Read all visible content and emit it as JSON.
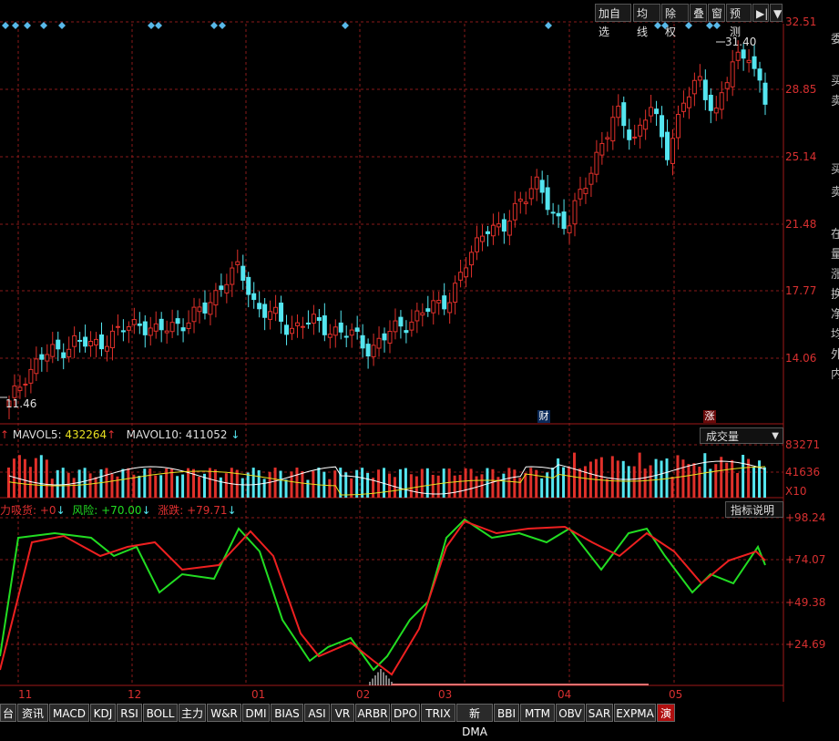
{
  "toolbar": {
    "buttons": [
      "加自选",
      "均线",
      "除权",
      "叠",
      "窗",
      "预测",
      "▶|",
      "▼"
    ]
  },
  "price_axis": [
    "32.51",
    "28.85",
    "25.14",
    "21.48",
    "17.77",
    "14.06"
  ],
  "price_markers": {
    "high": "31.40",
    "low": "11.46",
    "event_cai": "财",
    "event_zhang": "涨"
  },
  "right_edge_text": [
    "委",
    "买",
    "卖",
    "买",
    "卖",
    "在",
    "量",
    "涨",
    "换",
    "净",
    "均",
    "外",
    "内"
  ],
  "volume": {
    "legend_mavol5_label": "MAVOL5:",
    "legend_mavol5_value": "432264",
    "legend_mavol10_label": "MAVOL10:",
    "legend_mavol10_value": "411052",
    "dropdown": "成交量",
    "axis": [
      "83271",
      "41636",
      "X10"
    ]
  },
  "indicator": {
    "legend_1": "力吸货: +0",
    "legend_2": "风险: +70.00",
    "legend_3": "涨跌: +79.71",
    "help": "指标说明",
    "axis": [
      "+98.24",
      "+74.07",
      "+49.38",
      "+24.69"
    ]
  },
  "x_axis": [
    "11",
    "12",
    "01",
    "02",
    "03",
    "04",
    "05"
  ],
  "tabs": [
    "台",
    "资讯",
    "MACD",
    "KDJ",
    "RSI",
    "BOLL",
    "主力",
    "W&R",
    "DMI",
    "BIAS",
    "ASI",
    "VR",
    "ARBR",
    "DPO",
    "TRIX",
    "新DMA",
    "BBI",
    "MTM",
    "OBV",
    "SAR",
    "EXPMA",
    "演"
  ],
  "colors": {
    "up": "#e0302a",
    "down": "#54e6f0",
    "grid": "#8a1a1a",
    "axis_text": "#d83030",
    "green_line": "#22dd22",
    "red_line": "#ee2020"
  },
  "chart_data": {
    "type": "candlestick",
    "price_range": [
      10.5,
      32.51
    ],
    "closes_approx": [
      11.46,
      13.2,
      14.1,
      14.5,
      15.0,
      14.7,
      15.2,
      15.6,
      16.1,
      15.4,
      15.9,
      16.2,
      16.8,
      18.3,
      18.9,
      17.0,
      16.4,
      15.7,
      16.1,
      15.8,
      15.6,
      15.2,
      14.6,
      15.3,
      16.0,
      16.4,
      17.0,
      17.6,
      19.5,
      21.5,
      20.8,
      22.8,
      23.6,
      22.1,
      21.4,
      23.4,
      25.9,
      27.4,
      26.1,
      27.9,
      25.3,
      28.1,
      29.2,
      27.6,
      30.1,
      31.0,
      28.0
    ],
    "volume_axis": [
      "83271",
      "41636"
    ],
    "indicator_axis": [
      98.24,
      74.07,
      49.38,
      24.69
    ]
  }
}
